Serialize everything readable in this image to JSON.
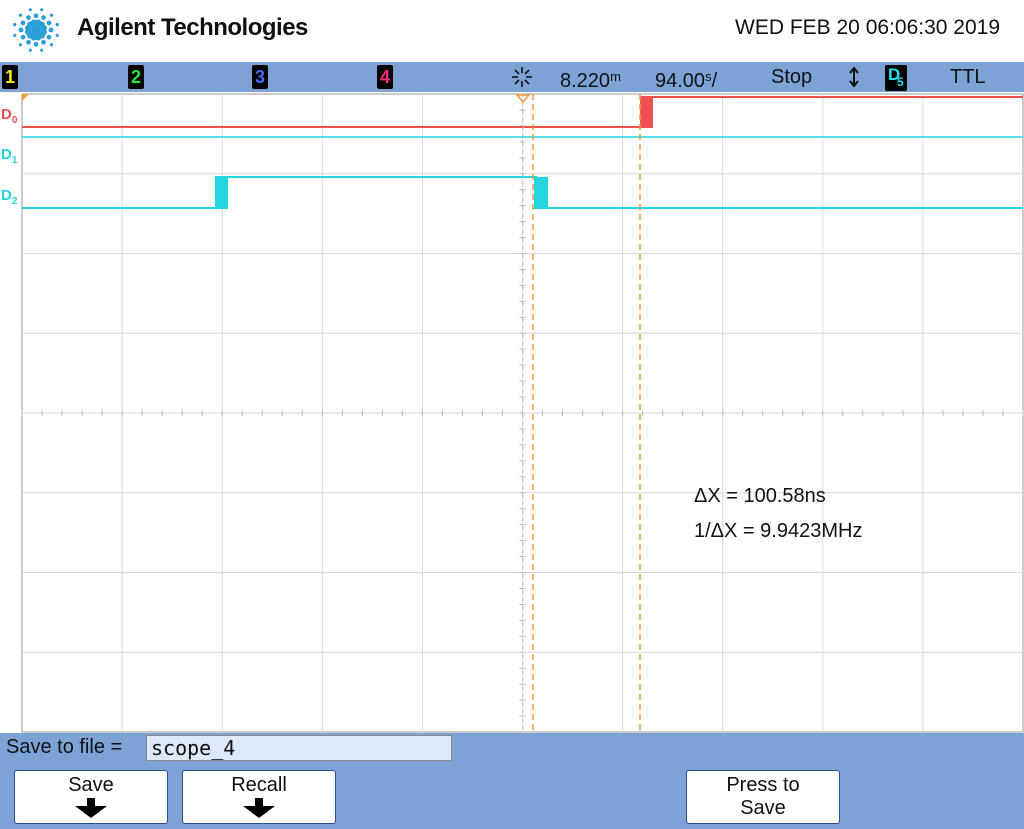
{
  "header": {
    "brand": "Agilent Technologies",
    "datetime": "WED FEB 20 06:06:30 2019"
  },
  "status_bar": {
    "channels": [
      {
        "label": "1",
        "color": "#f2ee1c"
      },
      {
        "label": "2",
        "color": "#2fe43a"
      },
      {
        "label": "3",
        "color": "#4a6bff"
      },
      {
        "label": "4",
        "color": "#ff2a7a"
      }
    ],
    "trigger_icon": "trigger-icon",
    "time_offset": "8.220",
    "time_offset_unit": "m",
    "time_base": "94.00",
    "time_base_unit": "s",
    "time_base_suffix": "/",
    "run_state": "Stop",
    "edge_icon": "up-down-arrow-icon",
    "trigger_source": "D",
    "trigger_source_sub": "5",
    "logic_level": "TTL"
  },
  "plot": {
    "channel_labels": [
      {
        "name": "D",
        "sub": "0",
        "color": "#f05050"
      },
      {
        "name": "D",
        "sub": "1",
        "color": "#22d6e0"
      },
      {
        "name": "D",
        "sub": "2",
        "color": "#22d6e0"
      }
    ],
    "measurements": {
      "delta_x": "ΔX = 100.58ns",
      "inverse_delta_x": "1/ΔX = 9.9423MHz"
    },
    "colors": {
      "grid": "#d8d8d8",
      "d0": "#f05050",
      "d1": "#22d6e0",
      "d2": "#22d6e0",
      "cursor": "#f09a3c"
    }
  },
  "softkeys": {
    "save_to_file_label": "Save to file =",
    "file_name": "scope_4",
    "buttons": [
      {
        "label": "Save",
        "has_arrow": true
      },
      {
        "label": "Recall",
        "has_arrow": true
      },
      {
        "label": "Press to Save",
        "line1": "Press to",
        "line2": "Save",
        "has_arrow": false
      }
    ]
  }
}
